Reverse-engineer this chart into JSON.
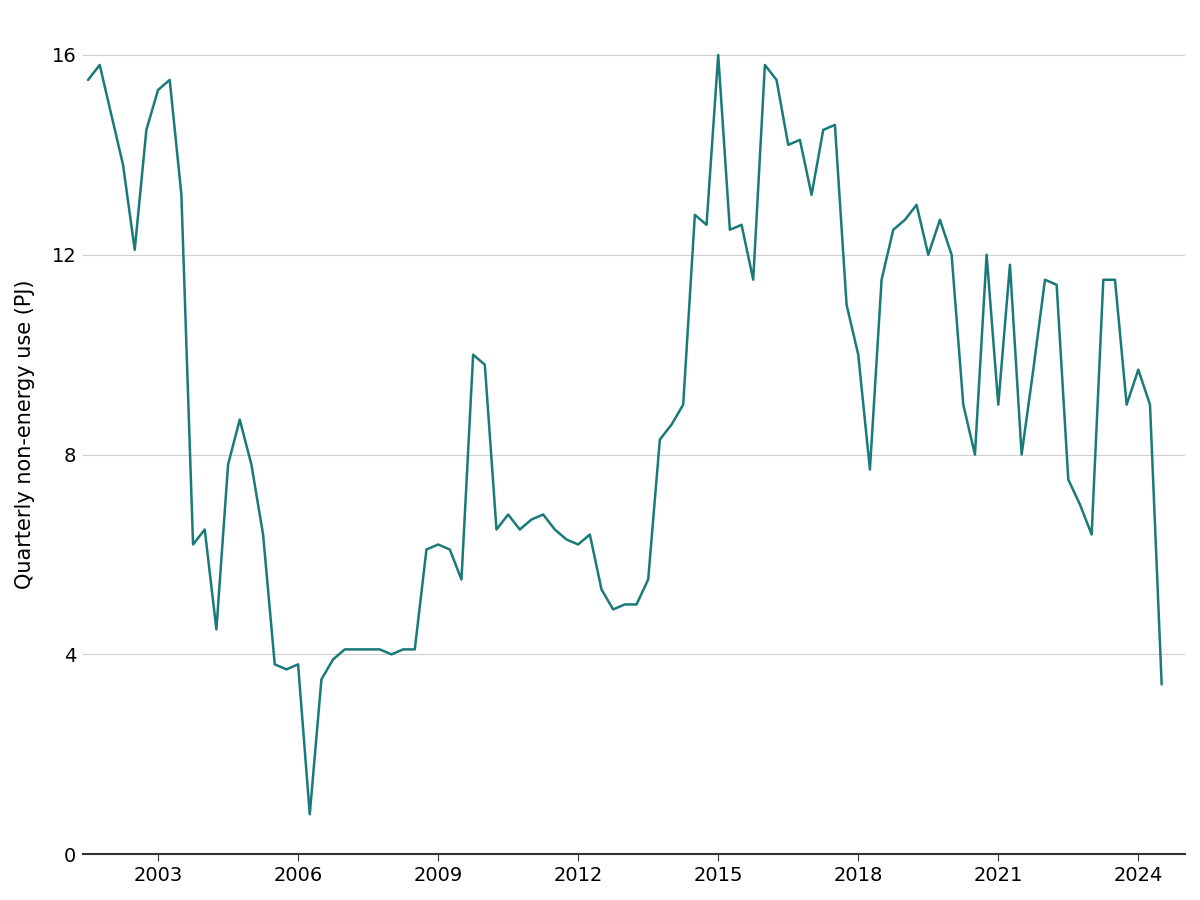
{
  "title": "",
  "ylabel": "Quarterly non-energy use (PJ)",
  "line_color": "#1a7a7a",
  "background_color": "#ffffff",
  "grid_color": "#d0d0d0",
  "ylim": [
    0,
    16.8
  ],
  "yticks": [
    0,
    4,
    8,
    12,
    16
  ],
  "xlabel_years": [
    2003,
    2006,
    2009,
    2012,
    2015,
    2018,
    2021,
    2024
  ],
  "data": [
    [
      2001.5,
      15.5
    ],
    [
      2001.75,
      15.8
    ],
    [
      2002.0,
      14.8
    ],
    [
      2002.25,
      13.8
    ],
    [
      2002.5,
      12.1
    ],
    [
      2002.75,
      14.5
    ],
    [
      2003.0,
      15.3
    ],
    [
      2003.25,
      15.5
    ],
    [
      2003.5,
      13.2
    ],
    [
      2003.75,
      6.2
    ],
    [
      2004.0,
      6.5
    ],
    [
      2004.25,
      4.5
    ],
    [
      2004.5,
      7.8
    ],
    [
      2004.75,
      8.7
    ],
    [
      2005.0,
      7.8
    ],
    [
      2005.25,
      6.4
    ],
    [
      2005.5,
      3.8
    ],
    [
      2005.75,
      3.7
    ],
    [
      2006.0,
      3.8
    ],
    [
      2006.25,
      0.8
    ],
    [
      2006.5,
      3.5
    ],
    [
      2006.75,
      3.9
    ],
    [
      2007.0,
      4.1
    ],
    [
      2007.25,
      4.1
    ],
    [
      2007.5,
      4.1
    ],
    [
      2007.75,
      4.1
    ],
    [
      2008.0,
      4.0
    ],
    [
      2008.25,
      4.1
    ],
    [
      2008.5,
      4.1
    ],
    [
      2008.75,
      6.1
    ],
    [
      2009.0,
      6.2
    ],
    [
      2009.25,
      6.1
    ],
    [
      2009.5,
      5.5
    ],
    [
      2009.75,
      10.0
    ],
    [
      2010.0,
      9.8
    ],
    [
      2010.25,
      6.5
    ],
    [
      2010.5,
      6.8
    ],
    [
      2010.75,
      6.5
    ],
    [
      2011.0,
      6.7
    ],
    [
      2011.25,
      6.8
    ],
    [
      2011.5,
      6.5
    ],
    [
      2011.75,
      6.3
    ],
    [
      2012.0,
      6.2
    ],
    [
      2012.25,
      6.4
    ],
    [
      2012.5,
      5.3
    ],
    [
      2012.75,
      4.9
    ],
    [
      2013.0,
      5.0
    ],
    [
      2013.25,
      5.0
    ],
    [
      2013.5,
      5.5
    ],
    [
      2013.75,
      8.3
    ],
    [
      2014.0,
      8.6
    ],
    [
      2014.25,
      9.0
    ],
    [
      2014.5,
      12.8
    ],
    [
      2014.75,
      12.6
    ],
    [
      2015.0,
      16.0
    ],
    [
      2015.25,
      12.5
    ],
    [
      2015.5,
      12.6
    ],
    [
      2015.75,
      11.5
    ],
    [
      2016.0,
      15.8
    ],
    [
      2016.25,
      15.5
    ],
    [
      2016.5,
      14.2
    ],
    [
      2016.75,
      14.3
    ],
    [
      2017.0,
      13.2
    ],
    [
      2017.25,
      14.5
    ],
    [
      2017.5,
      14.6
    ],
    [
      2017.75,
      11.0
    ],
    [
      2018.0,
      10.0
    ],
    [
      2018.25,
      7.7
    ],
    [
      2018.5,
      11.5
    ],
    [
      2018.75,
      12.5
    ],
    [
      2019.0,
      12.7
    ],
    [
      2019.25,
      13.0
    ],
    [
      2019.5,
      12.0
    ],
    [
      2019.75,
      12.7
    ],
    [
      2020.0,
      12.0
    ],
    [
      2020.25,
      9.0
    ],
    [
      2020.5,
      8.0
    ],
    [
      2020.75,
      12.0
    ],
    [
      2021.0,
      9.0
    ],
    [
      2021.25,
      11.8
    ],
    [
      2021.5,
      8.0
    ],
    [
      2021.75,
      9.7
    ],
    [
      2022.0,
      11.5
    ],
    [
      2022.25,
      11.4
    ],
    [
      2022.5,
      7.5
    ],
    [
      2022.75,
      7.0
    ],
    [
      2023.0,
      6.4
    ],
    [
      2023.25,
      11.5
    ],
    [
      2023.5,
      11.5
    ],
    [
      2023.75,
      9.0
    ],
    [
      2024.0,
      9.7
    ],
    [
      2024.25,
      9.0
    ],
    [
      2024.5,
      3.4
    ]
  ]
}
